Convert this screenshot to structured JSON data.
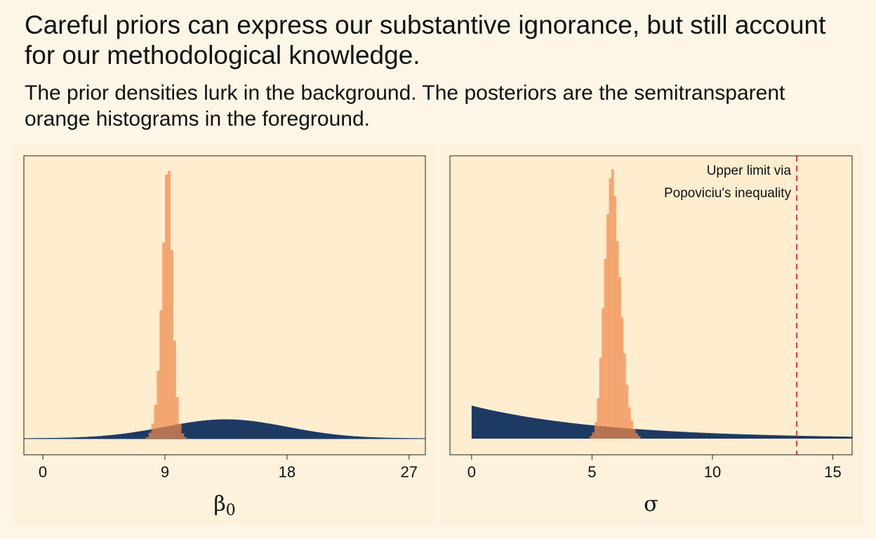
{
  "title": "Careful priors can express our substantive ignorance, but still account for our methodological knowledge.",
  "subtitle": "The prior densities lurk in the background. The posteriors are the semitransparent orange histograms in the foreground.",
  "colors": {
    "prior_fill": "#1d3a63",
    "posterior_fill": "#f08a4b",
    "reference_line": "#e0424a",
    "plot_bg": "#feedcf"
  },
  "chart_data": [
    {
      "type": "area",
      "xlabel": "β",
      "xlabel_sub": "0",
      "xlim": [
        -1.4,
        28.2
      ],
      "xticks": [
        0,
        9,
        18,
        27
      ],
      "xtick_labels": [
        "0",
        "9",
        "18",
        "27"
      ],
      "y_axis_shown": false,
      "prior": {
        "distribution": "normal",
        "mean": 13.5,
        "sd": 4.5,
        "peak_density": 0.089
      },
      "posterior_histogram": {
        "bin_edges": [
          7.6,
          7.8,
          8.0,
          8.2,
          8.4,
          8.6,
          8.8,
          9.0,
          9.2,
          9.4,
          9.6,
          9.8,
          10.0,
          10.2,
          10.4,
          10.6
        ],
        "density": [
          0.02,
          0.08,
          0.2,
          0.45,
          0.9,
          1.7,
          2.6,
          3.5,
          3.55,
          2.5,
          1.3,
          0.55,
          0.2,
          0.07,
          0.02
        ]
      },
      "ylim": [
        0,
        3.75
      ]
    },
    {
      "type": "area",
      "xlabel": "σ",
      "xlim": [
        -0.9,
        15.8
      ],
      "xticks": [
        0,
        5,
        10,
        15
      ],
      "xtick_labels": [
        "0",
        "5",
        "10",
        "15"
      ],
      "y_axis_shown": false,
      "prior": {
        "distribution": "exponential",
        "x_min": 0,
        "x_max": 15.8,
        "peak_density": 0.19,
        "rate": 0.18
      },
      "posterior_histogram": {
        "bin_edges": [
          4.9,
          5.0,
          5.1,
          5.2,
          5.3,
          5.4,
          5.5,
          5.6,
          5.7,
          5.8,
          5.9,
          6.0,
          6.1,
          6.2,
          6.3,
          6.4,
          6.5,
          6.6,
          6.7,
          6.8,
          6.9,
          7.0
        ],
        "density": [
          0.03,
          0.07,
          0.18,
          0.45,
          0.9,
          1.45,
          2.0,
          2.5,
          2.9,
          3.0,
          2.7,
          2.2,
          1.8,
          1.35,
          0.95,
          0.6,
          0.35,
          0.2,
          0.11,
          0.06,
          0.03
        ]
      },
      "ylim": [
        0,
        3.15
      ],
      "reference_line": {
        "x": 13.5,
        "style": "dashed"
      },
      "annotation": [
        "Upper limit via",
        "Popoviciu's inequality"
      ]
    }
  ]
}
